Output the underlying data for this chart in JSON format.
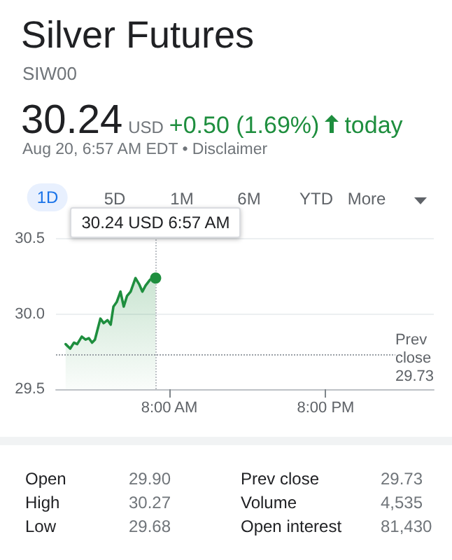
{
  "chart_data": {
    "type": "area",
    "title": "Silver Futures",
    "subtitle": "SIW00",
    "x": [
      0.04,
      0.39,
      0.68,
      0.93,
      1.28,
      1.57,
      1.82,
      2.07,
      2.29,
      2.53,
      2.71,
      2.96,
      3.25,
      3.5,
      3.71,
      3.96,
      4.25,
      4.5,
      4.75,
      5.03,
      5.4,
      5.68,
      5.93,
      6.18,
      6.53,
      6.95
    ],
    "series": [
      {
        "color": "#1e8e3e",
        "values": [
          29.8,
          29.77,
          29.81,
          29.8,
          29.85,
          29.83,
          29.84,
          29.81,
          29.83,
          29.91,
          29.97,
          29.94,
          29.96,
          29.93,
          30.05,
          30.08,
          30.15,
          30.05,
          30.12,
          30.15,
          30.24,
          30.2,
          30.15,
          30.19,
          30.23,
          30.24
        ]
      }
    ],
    "xlim": [
      -0.7,
      28.3
    ],
    "xticks": [
      {
        "value": 8,
        "label": "8:00 AM"
      },
      {
        "value": 20,
        "label": "8:00 PM"
      }
    ],
    "ylim": [
      29.5,
      30.6
    ],
    "yticks": [
      29.5,
      {
        "value": 30,
        "label": "30.0"
      },
      30.5
    ],
    "grid": "y",
    "marker": "none",
    "line_style": "solid",
    "ref_lines": [
      {
        "axis": "y",
        "value": 29.73,
        "label": "Prev close",
        "line_style": "dotted",
        "color": "#9aa0a6"
      },
      {
        "axis": "x",
        "value": 6.95,
        "line_style": "dotted",
        "color": "#bdc1c6"
      }
    ],
    "annotations": [
      "30.24",
      "USD",
      "+0.50 (1.69%)",
      "today",
      "Aug 20, 6:57 AM EDT • Disclaimer",
      "1D",
      "5D",
      "1M",
      "6M",
      "YTD",
      "More",
      "Open",
      "29.90",
      "High",
      "30.27",
      "Low",
      "29.68",
      "Prev close",
      "29.73",
      "Volume",
      "4,535",
      "Open interest",
      "81,430",
      {
        "text": "30.24 USD  6:57 AM",
        "x": 6.95,
        "y": 30.24
      }
    ]
  }
}
